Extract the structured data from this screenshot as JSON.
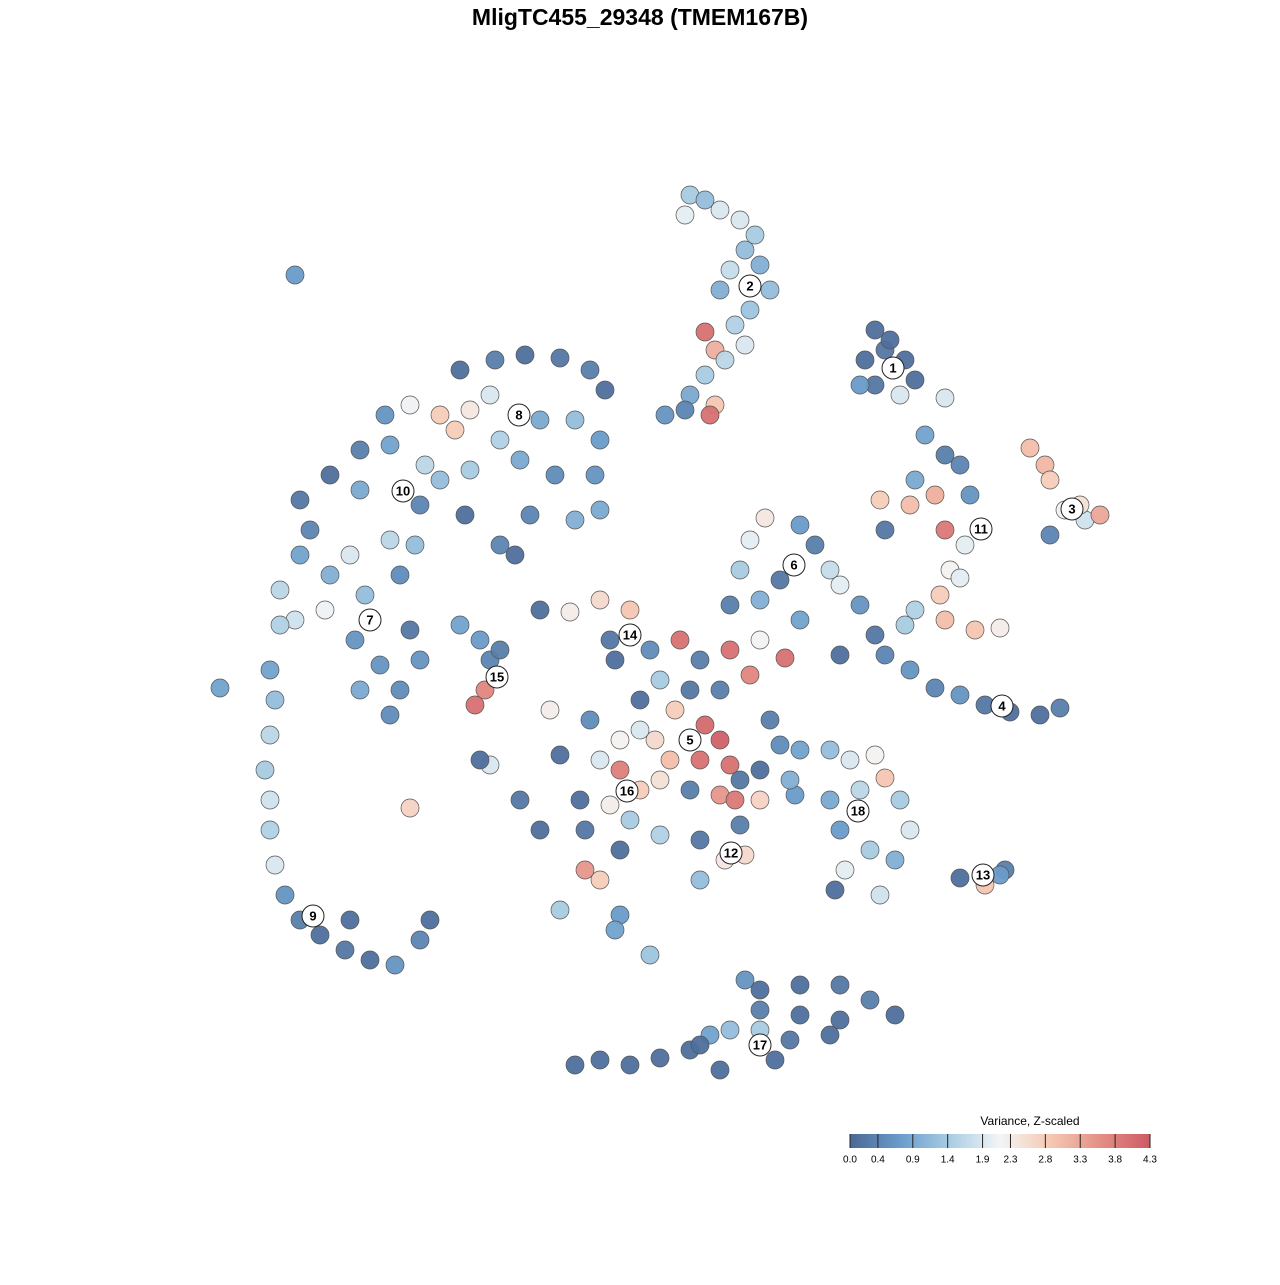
{
  "chart_data": {
    "type": "scatter",
    "title": "MligTC455_29348 (TMEM167B)",
    "xlim": [
      0,
      92
    ],
    "ylim": [
      0,
      93
    ],
    "x": [
      49,
      50.5,
      48.5,
      52,
      54,
      55.5,
      54.5,
      56,
      53,
      57,
      52,
      55,
      53.5,
      50.5,
      51.5,
      54.5,
      52.5,
      50.5,
      49,
      51.5,
      51,
      46.5,
      48.5,
      67.5,
      66.5,
      68.5,
      70.5,
      67.5,
      71.5,
      66,
      70,
      69,
      9.5,
      74.5,
      83,
      84.5,
      85,
      86.5,
      88.5,
      90,
      85,
      88,
      72.5,
      74.5,
      76,
      71.5,
      77,
      68,
      71,
      73.5,
      74.5,
      76.5,
      68.5,
      75,
      74,
      71.5,
      74.5,
      77.5,
      80,
      70.5,
      76,
      56.5,
      55,
      60,
      61.5,
      59.5,
      58,
      54,
      53,
      56,
      60,
      64,
      63,
      66,
      67.5,
      68.5,
      71,
      73.5,
      76,
      78.5,
      81,
      84,
      86,
      64,
      26,
      29.5,
      32.5,
      36,
      39,
      40.5,
      21,
      24,
      27,
      25.5,
      29,
      30,
      34,
      37.5,
      40,
      18.5,
      16,
      19,
      22.5,
      24,
      27,
      32,
      35.5,
      39.5,
      13,
      10,
      16,
      22,
      26.5,
      33,
      37.5,
      40,
      11,
      15,
      19,
      21.5,
      10,
      13,
      8,
      9.5,
      12.5,
      16.5,
      20,
      15.5,
      18,
      16,
      20,
      22,
      19,
      21,
      30,
      31.5,
      8,
      7,
      7.5,
      7,
      6.5,
      7,
      7,
      7.5,
      8.5,
      10,
      12,
      14.5,
      17,
      19.5,
      22,
      23,
      15,
      2,
      26,
      28,
      29,
      28.5,
      27.5,
      30,
      21,
      29,
      28,
      34,
      37,
      40,
      43,
      41,
      45,
      41.5,
      48,
      50,
      53,
      56,
      58.5,
      55,
      46,
      49,
      52,
      44,
      47.5,
      50.5,
      52,
      50,
      53,
      45.5,
      42,
      39,
      35,
      36,
      40,
      42,
      44,
      41,
      38,
      32,
      34,
      38.5,
      43,
      46,
      49,
      52,
      53.5,
      56,
      54,
      50,
      52.5,
      54.5,
      50,
      46,
      57,
      58,
      56,
      54,
      42,
      40,
      38.5,
      36,
      42,
      45,
      41.5,
      44,
      47,
      60,
      63,
      65,
      67.5,
      68.5,
      66,
      63,
      70,
      71,
      64,
      67,
      64.5,
      63.5,
      68,
      69.5,
      59.5,
      59,
      76,
      78.5,
      80.5,
      80,
      54.5,
      56,
      60,
      64,
      67,
      69.5,
      56,
      60,
      64,
      53,
      56,
      59,
      63,
      51,
      49,
      46,
      43,
      40,
      37.5,
      52,
      57.5,
      50
    ],
    "y": [
      90.5,
      90,
      88.5,
      89,
      88,
      86.5,
      85,
      83.5,
      83,
      81,
      81,
      79,
      77.5,
      76.8,
      75,
      75.5,
      74,
      72.5,
      70.5,
      69.5,
      68.5,
      68.5,
      69,
      77,
      74,
      75,
      74,
      71.5,
      72,
      71.5,
      70.5,
      76,
      82.5,
      70.2,
      65.2,
      63.5,
      62,
      59,
      58,
      58.5,
      56.5,
      59.5,
      66.5,
      64.5,
      63.5,
      62,
      60.5,
      60,
      59.5,
      60.5,
      57,
      55.5,
      57,
      53,
      50.5,
      49,
      48,
      47,
      47.2,
      47.5,
      52.2,
      58.2,
      56,
      57.5,
      55.5,
      53.5,
      52,
      53,
      49.5,
      50,
      48,
      51.5,
      53,
      49.5,
      46.5,
      44.5,
      43,
      41.2,
      40.5,
      39.5,
      38.8,
      38.5,
      39.2,
      44.5,
      73,
      74,
      74.5,
      74.2,
      73,
      71,
      69.5,
      68.5,
      69,
      67,
      70.5,
      66,
      68,
      68,
      66,
      68.5,
      65,
      65.5,
      63.5,
      62,
      63,
      64,
      62.5,
      62.5,
      62.5,
      60,
      61,
      59.5,
      58.5,
      58.5,
      58,
      59,
      57,
      54.5,
      56,
      55.5,
      54.5,
      52.5,
      51,
      48,
      49,
      50.5,
      52.5,
      46,
      43.5,
      41,
      41,
      44,
      38.5,
      47,
      55.5,
      54.5,
      47.5,
      43,
      40,
      36.5,
      33,
      30,
      27,
      23.5,
      20.5,
      18,
      16.5,
      15,
      14,
      13.5,
      16,
      18,
      18,
      41.2,
      47.5,
      46,
      44,
      41,
      39.5,
      45,
      29.2,
      33.5,
      34,
      49,
      48.8,
      50,
      49,
      46,
      45,
      44,
      46,
      44,
      45,
      46,
      44.2,
      42.5,
      42,
      41,
      41,
      40,
      39,
      37.5,
      36,
      34,
      33.5,
      36,
      36,
      38,
      39,
      34.5,
      34,
      33,
      31,
      29.5,
      30,
      30,
      27,
      27,
      28,
      32,
      31,
      30.5,
      30,
      30,
      27.5,
      26,
      24,
      24.5,
      22,
      26.5,
      38,
      35.5,
      33,
      32,
      25,
      22,
      23,
      19,
      18.5,
      14.5,
      17,
      37,
      34,
      35,
      35,
      34,
      34.5,
      32.2,
      31,
      30,
      30,
      27,
      27,
      25,
      23,
      21,
      20.5,
      24,
      30.5,
      32,
      22.2,
      21.5,
      23,
      22.5,
      12,
      11,
      11.5,
      11.5,
      10,
      8.5,
      9,
      8.5,
      8,
      7,
      7,
      6,
      6.5,
      6.5,
      5,
      4.2,
      3.5,
      4,
      3.5,
      3,
      4,
      5.5
    ],
    "values": [
      1.4,
      1.2,
      2.0,
      1.9,
      1.9,
      1.4,
      1.2,
      1.0,
      1.7,
      1.2,
      1.0,
      1.3,
      1.5,
      4.0,
      3.2,
      1.9,
      1.6,
      1.4,
      0.9,
      2.9,
      4.0,
      0.6,
      0.4,
      0.1,
      0.1,
      0.2,
      0.1,
      0.2,
      0.1,
      0.7,
      1.9,
      0.1,
      0.7,
      1.9,
      3.0,
      3.1,
      2.8,
      2.1,
      1.8,
      3.3,
      0.4,
      2.5,
      0.8,
      0.3,
      0.4,
      0.9,
      0.6,
      2.8,
      3.0,
      3.2,
      3.9,
      2.0,
      0.2,
      2.2,
      2.8,
      1.5,
      3.0,
      2.9,
      2.3,
      1.4,
      2.0,
      2.4,
      2.0,
      0.7,
      0.3,
      0.5,
      0.2,
      1.4,
      0.3,
      1.0,
      0.8,
      2.0,
      1.7,
      0.6,
      0.2,
      0.4,
      0.6,
      0.4,
      0.6,
      0.2,
      0.1,
      0.1,
      0.3,
      0.1,
      0.1,
      0.3,
      0.1,
      0.2,
      0.3,
      0.1,
      2.1,
      2.8,
      2.4,
      2.8,
      1.9,
      1.5,
      0.9,
      1.2,
      0.7,
      0.6,
      0.3,
      0.8,
      1.6,
      1.2,
      1.4,
      0.9,
      0.5,
      0.6,
      0.1,
      0.2,
      0.9,
      0.4,
      0.1,
      0.4,
      1.0,
      0.9,
      0.4,
      1.9,
      1.6,
      1.2,
      0.8,
      1.0,
      1.6,
      1.8,
      2.1,
      1.2,
      0.5,
      0.6,
      0.6,
      0.9,
      0.5,
      0.6,
      0.5,
      0.2,
      0.4,
      0.1,
      1.5,
      0.8,
      1.2,
      1.6,
      1.4,
      1.8,
      1.5,
      1.9,
      0.6,
      0.3,
      0.1,
      0.2,
      0.1,
      0.6,
      0.4,
      0.1,
      0.1,
      0.8,
      0.8,
      0.7,
      0.4,
      3.7,
      4.0,
      0.3,
      2.7,
      1.9,
      0.1,
      0.1,
      2.3,
      2.6,
      2.9,
      0.2,
      0.5,
      0.1,
      4.0,
      0.3,
      4.0,
      2.2,
      4.0,
      3.7,
      1.4,
      0.2,
      0.3,
      0.1,
      2.8,
      4.1,
      4.2,
      4.0,
      4.0,
      2.6,
      2.2,
      0.5,
      2.3,
      0.1,
      1.9,
      3.8,
      2.8,
      2.3,
      0.1,
      0.2,
      0.1,
      0.2,
      1.4,
      2.5,
      0.3,
      3.5,
      3.9,
      2.7,
      0.3,
      0.2,
      2.4,
      2.6,
      1.2,
      1.5,
      0.3,
      0.5,
      0.1,
      0.2,
      0.1,
      2.8,
      3.5,
      1.4,
      0.7,
      1.3,
      0.8,
      1.9,
      3.0,
      0.8,
      1.2,
      1.9,
      2.2,
      2.9,
      1.6,
      0.9,
      1.4,
      1.9,
      0.7,
      1.4,
      2.0,
      0.1,
      1.8,
      1.0,
      0.7,
      1.0,
      0.1,
      2.9,
      0.3,
      0.7,
      0.6,
      0.1,
      0.1,
      0.2,
      0.3,
      0.1,
      0.3,
      0.1,
      0.1,
      1.2,
      1.4,
      0.2,
      0.1,
      0.8,
      0.1,
      0.1,
      0.1,
      0.1,
      0.1,
      0.1,
      0.1,
      0.1
    ],
    "cluster_labels": [
      "1",
      "2",
      "3",
      "4",
      "5",
      "6",
      "7",
      "8",
      "9",
      "10",
      "11",
      "12",
      "13",
      "14",
      "15",
      "16",
      "17",
      "18"
    ],
    "cluster_x": [
      69.3,
      55,
      87.2,
      80.2,
      49,
      59.4,
      17,
      31.9,
      11.3,
      20.3,
      78.1,
      53.1,
      78.3,
      43,
      29.7,
      42.7,
      56,
      65.8
    ],
    "cluster_y": [
      73.2,
      81.4,
      59.1,
      39.4,
      36,
      53.5,
      48,
      68.5,
      18.4,
      60.9,
      57.1,
      24.7,
      22.5,
      46.5,
      42.3,
      30.9,
      5.5,
      28.9
    ],
    "colorbar_title": "Variance, Z-scaled",
    "clim": [
      0,
      4.3
    ],
    "colorbar_ticks": [
      {
        "value": 0,
        "label": "0.0"
      },
      0.4,
      0.9,
      1.4,
      1.9,
      2.3,
      2.8,
      3.3,
      3.8,
      4.3
    ],
    "colors": [
      "#4a6894",
      "#6a9ccb",
      "#a9cde3",
      "#f3f5f6",
      "#f5c9b3",
      "#e58f85",
      "#cd5a64"
    ]
  }
}
